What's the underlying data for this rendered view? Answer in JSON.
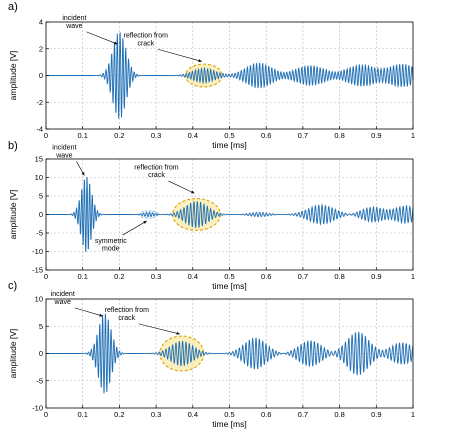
{
  "chart_data": [
    {
      "type": "line",
      "panel_label": "a)",
      "xlabel": "time [ms]",
      "ylabel": "amplitude [V]",
      "xlim": [
        0,
        1
      ],
      "ylim": [
        -4,
        4
      ],
      "xticks": [
        0,
        0.1,
        0.2,
        0.3,
        0.4,
        0.5,
        0.6,
        0.7,
        0.8,
        0.9,
        1
      ],
      "xtick_labels": [
        "0",
        "0.1",
        "0.2",
        "0.3",
        "0.4",
        "0.5",
        "0.6",
        "0.7",
        "0.8",
        "0.9",
        "1"
      ],
      "yticks": [
        -4,
        -2,
        0,
        2,
        4
      ],
      "ytick_labels": [
        "-4",
        "-2",
        "0",
        "2",
        "4"
      ],
      "grid": true,
      "line_color": "#1f6fb5",
      "highlight_color": "#e0a000",
      "highlight_fill": "#f5e38a",
      "annotations": [
        {
          "id": "incident",
          "lines": [
            "incident",
            "wave"
          ],
          "x": 0.2,
          "y": 2.2
        },
        {
          "id": "reflection",
          "lines": [
            "reflection from",
            "crack"
          ],
          "x": 0.43,
          "y": 0.9
        }
      ],
      "highlights": [
        {
          "x": 0.43,
          "y": 0.0,
          "rx": 0.05,
          "ry": 0.85,
          "style": "yellow"
        }
      ],
      "wave_packets": [
        {
          "center": 0.2,
          "amplitude": 3.3,
          "width": 0.018,
          "frequency": 130
        },
        {
          "center": 0.43,
          "amplitude": 0.55,
          "width": 0.03,
          "frequency": 120
        },
        {
          "center": 0.58,
          "amplitude": 0.95,
          "width": 0.035,
          "frequency": 120
        },
        {
          "center": 0.72,
          "amplitude": 0.75,
          "width": 0.04,
          "frequency": 120
        },
        {
          "center": 0.86,
          "amplitude": 0.8,
          "width": 0.04,
          "frequency": 120
        },
        {
          "center": 0.97,
          "amplitude": 0.85,
          "width": 0.04,
          "frequency": 120
        }
      ]
    },
    {
      "type": "line",
      "panel_label": "b)",
      "xlabel": "time [ms]",
      "ylabel": "amplitude [V]",
      "xlim": [
        0,
        1
      ],
      "ylim": [
        -15,
        15
      ],
      "xticks": [
        0,
        0.1,
        0.2,
        0.3,
        0.4,
        0.5,
        0.6,
        0.7,
        0.8,
        0.9,
        1
      ],
      "xtick_labels": [
        "0",
        "0.1",
        "0.2",
        "0.3",
        "0.4",
        "0.5",
        "0.6",
        "0.7",
        "0.8",
        "0.9",
        "1"
      ],
      "yticks": [
        -15,
        -10,
        -5,
        0,
        5,
        10,
        15
      ],
      "ytick_labels": [
        "-15",
        "-10",
        "-5",
        "0",
        "5",
        "10",
        "15"
      ],
      "grid": true,
      "line_color": "#1f6fb5",
      "highlight_color": "#e0a000",
      "highlight_fill": "#f5e38a",
      "annotations": [
        {
          "id": "incident",
          "lines": [
            "incident",
            "wave"
          ],
          "x": 0.11,
          "y": 10
        },
        {
          "id": "reflection",
          "lines": [
            "reflection from",
            "crack"
          ],
          "x": 0.41,
          "y": 5.2
        },
        {
          "id": "symmetric",
          "lines": [
            "symmetric",
            "mode"
          ],
          "x": 0.28,
          "y": -1.2
        }
      ],
      "highlights": [
        {
          "x": 0.41,
          "y": 0.0,
          "rx": 0.065,
          "ry": 4.3,
          "style": "yellow"
        },
        {
          "x": 0.28,
          "y": 0.0,
          "rx": 0.025,
          "ry": 1.0,
          "style": "blue"
        }
      ],
      "wave_packets": [
        {
          "center": 0.11,
          "amplitude": 10.5,
          "width": 0.014,
          "frequency": 140
        },
        {
          "center": 0.28,
          "amplitude": 0.6,
          "width": 0.015,
          "frequency": 120
        },
        {
          "center": 0.41,
          "amplitude": 3.6,
          "width": 0.03,
          "frequency": 110
        },
        {
          "center": 0.58,
          "amplitude": 0.6,
          "width": 0.025,
          "frequency": 110
        },
        {
          "center": 0.75,
          "amplitude": 2.6,
          "width": 0.035,
          "frequency": 110
        },
        {
          "center": 0.89,
          "amplitude": 2.0,
          "width": 0.03,
          "frequency": 110
        },
        {
          "center": 0.98,
          "amplitude": 2.3,
          "width": 0.03,
          "frequency": 110
        }
      ]
    },
    {
      "type": "line",
      "panel_label": "c)",
      "xlabel": "time [ms]",
      "ylabel": "amplitude [V]",
      "xlim": [
        0,
        1
      ],
      "ylim": [
        -10,
        10
      ],
      "xticks": [
        0,
        0.1,
        0.2,
        0.3,
        0.4,
        0.5,
        0.6,
        0.7,
        0.8,
        0.9,
        1
      ],
      "xtick_labels": [
        "0",
        "0.1",
        "0.2",
        "0.3",
        "0.4",
        "0.5",
        "0.6",
        "0.7",
        "0.8",
        "0.9",
        "1"
      ],
      "yticks": [
        -10,
        -5,
        0,
        5,
        10
      ],
      "ytick_labels": [
        "-10",
        "-5",
        "0",
        "5",
        "10"
      ],
      "grid": true,
      "line_color": "#1f6fb5",
      "highlight_color": "#e0a000",
      "highlight_fill": "#f5e38a",
      "annotations": [
        {
          "id": "incident",
          "lines": [
            "incident",
            "wave"
          ],
          "x": 0.16,
          "y": 6.5
        },
        {
          "id": "reflection",
          "lines": [
            "reflection from",
            "crack"
          ],
          "x": 0.37,
          "y": 3.2
        }
      ],
      "highlights": [
        {
          "x": 0.37,
          "y": 0.0,
          "rx": 0.06,
          "ry": 3.2,
          "style": "yellow"
        }
      ],
      "wave_packets": [
        {
          "center": 0.16,
          "amplitude": 7.5,
          "width": 0.017,
          "frequency": 130
        },
        {
          "center": 0.37,
          "amplitude": 2.3,
          "width": 0.03,
          "frequency": 110
        },
        {
          "center": 0.57,
          "amplitude": 2.9,
          "width": 0.03,
          "frequency": 110
        },
        {
          "center": 0.72,
          "amplitude": 2.4,
          "width": 0.03,
          "frequency": 110
        },
        {
          "center": 0.85,
          "amplitude": 4.0,
          "width": 0.03,
          "frequency": 110
        },
        {
          "center": 0.97,
          "amplitude": 2.0,
          "width": 0.03,
          "frequency": 110
        }
      ]
    }
  ]
}
